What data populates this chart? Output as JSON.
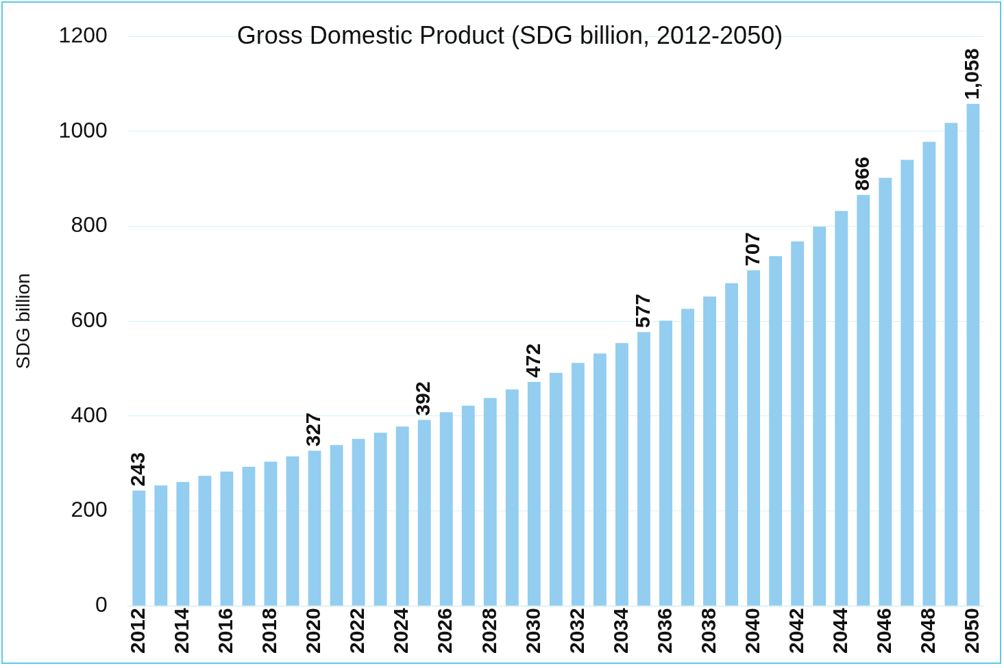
{
  "chart_data": {
    "type": "bar",
    "title": "Gross Domestic Product (SDG billion, 2012-2050)",
    "ylabel": "SDG billion",
    "categories": [
      "2012",
      null,
      "2014",
      null,
      "2016",
      null,
      "2018",
      null,
      "2020",
      null,
      "2022",
      null,
      "2024",
      null,
      "2026",
      null,
      "2028",
      null,
      "2030",
      null,
      "2032",
      null,
      "2034",
      null,
      "2036",
      null,
      "2038",
      null,
      "2040",
      null,
      "2042",
      null,
      "2044",
      null,
      "2046",
      null,
      "2048",
      null,
      "2050"
    ],
    "values": [
      243,
      254,
      261,
      274,
      283,
      293,
      304,
      315,
      327,
      339,
      352,
      365,
      378,
      392,
      408,
      422,
      438,
      456,
      472,
      491,
      512,
      532,
      554,
      577,
      601,
      626,
      652,
      680,
      707,
      737,
      768,
      799,
      832,
      866,
      902,
      940,
      978,
      1018,
      1058
    ],
    "value_labels": [
      "243",
      null,
      null,
      null,
      null,
      null,
      null,
      null,
      "327",
      null,
      null,
      null,
      null,
      "392",
      null,
      null,
      null,
      null,
      "472",
      null,
      null,
      null,
      null,
      "577",
      null,
      null,
      null,
      null,
      "707",
      null,
      null,
      null,
      null,
      "866",
      null,
      null,
      null,
      null,
      "1,058"
    ],
    "color": "#93cdf0",
    "ylim": [
      0,
      1200
    ],
    "yticks": [
      0,
      200,
      400,
      600,
      800,
      1000,
      1200
    ],
    "grid": "y",
    "legend": false
  }
}
